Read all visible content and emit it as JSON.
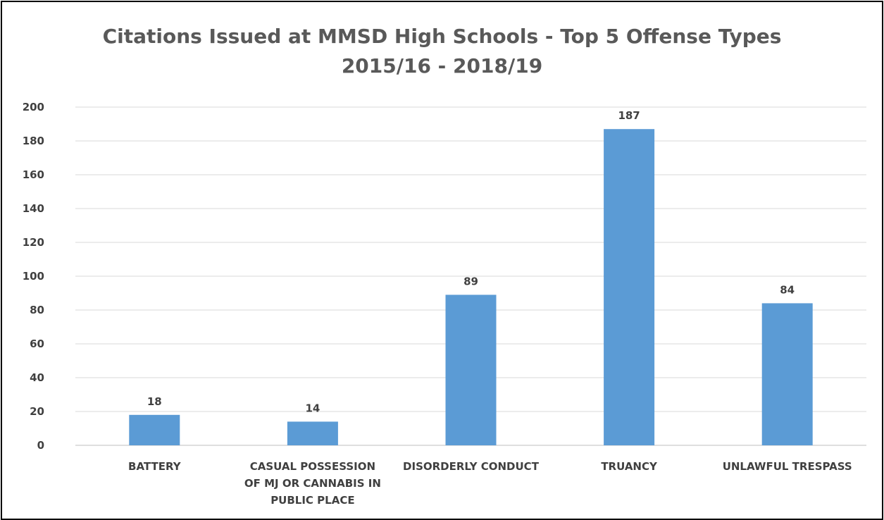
{
  "chart_data": {
    "type": "bar",
    "title": "Citations Issued at MMSD High Schools - Top 5 Offense Types",
    "subtitle": "2015/16 - 2018/19",
    "categories": [
      "BATTERY",
      "CASUAL POSSESSION OF MJ OR CANNABIS IN PUBLIC PLACE",
      "DISORDERLY CONDUCT",
      "TRUANCY",
      "UNLAWFUL TRESPASS"
    ],
    "values": [
      18,
      14,
      89,
      187,
      84
    ],
    "data_labels": [
      "18",
      "14",
      "89",
      "187",
      "84"
    ],
    "ylim": [
      0,
      200
    ],
    "yticks": [
      "0",
      "20",
      "40",
      "60",
      "80",
      "100",
      "120",
      "140",
      "160",
      "180",
      "200"
    ],
    "xlabel": "",
    "ylabel": "",
    "grid": true,
    "legend": "none",
    "bar_color": "#5b9bd5",
    "grid_color": "#d9d9d9"
  }
}
